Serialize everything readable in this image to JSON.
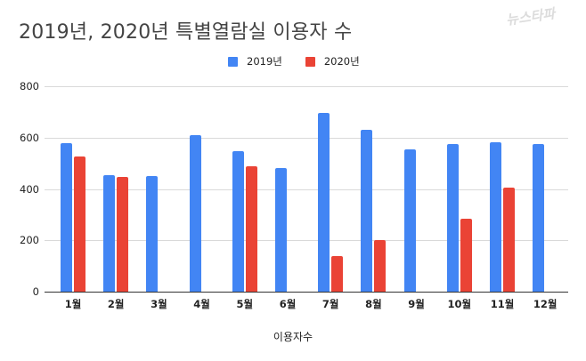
{
  "chart_data": {
    "type": "bar",
    "title": "2019년, 2020년 특별열람실 이용자 수",
    "xlabel": "이용자수",
    "ylabel": "",
    "categories": [
      "1월",
      "2월",
      "3월",
      "4월",
      "5월",
      "6월",
      "7월",
      "8월",
      "9월",
      "10월",
      "11월",
      "12월"
    ],
    "series": [
      {
        "name": "2019년",
        "color": "#4285f4",
        "values": [
          577,
          453,
          450,
          609,
          547,
          481,
          695,
          630,
          554,
          574,
          581,
          574
        ]
      },
      {
        "name": "2020년",
        "color": "#ea4335",
        "values": [
          526,
          446,
          null,
          null,
          488,
          null,
          138,
          201,
          null,
          284,
          405,
          null
        ]
      }
    ],
    "ylim": [
      0,
      800
    ],
    "yticks": [
      0,
      200,
      400,
      600,
      800
    ],
    "grid": true,
    "legend_position": "top"
  },
  "watermark": "뉴스타파"
}
